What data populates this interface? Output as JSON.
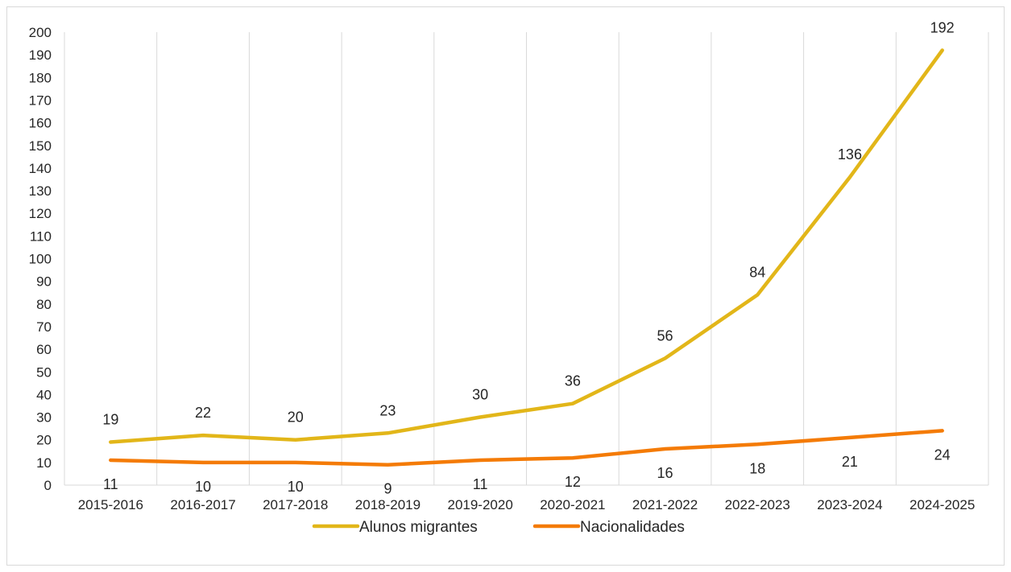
{
  "chart_data": {
    "type": "line",
    "categories": [
      "2015-2016",
      "2016-2017",
      "2017-2018",
      "2018-2019",
      "2019-2020",
      "2020-2021",
      "2021-2022",
      "2022-2023",
      "2023-2024",
      "2024-2025"
    ],
    "series": [
      {
        "name": "Alunos migrantes",
        "values": [
          19,
          22,
          20,
          23,
          30,
          36,
          56,
          84,
          136,
          192
        ],
        "color": "#E2B619",
        "label_position": "above"
      },
      {
        "name": "Nacionalidades",
        "values": [
          11,
          10,
          10,
          9,
          11,
          12,
          16,
          18,
          21,
          24
        ],
        "color": "#F47B07",
        "label_position": "below"
      }
    ],
    "ylim": [
      0,
      200
    ],
    "ytick_step": 10,
    "title": "",
    "xlabel": "",
    "ylabel": "",
    "grid": "vertical",
    "legend_position": "bottom"
  }
}
